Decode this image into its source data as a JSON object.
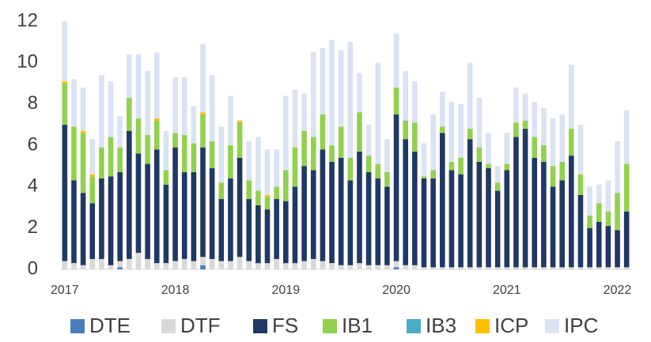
{
  "chart_data": {
    "type": "stacked_bar",
    "categories": [
      "2017",
      null,
      null,
      null,
      null,
      null,
      null,
      null,
      null,
      null,
      null,
      null,
      "2018",
      null,
      null,
      null,
      null,
      null,
      null,
      null,
      null,
      null,
      null,
      null,
      "2019",
      null,
      null,
      null,
      null,
      null,
      null,
      null,
      null,
      null,
      null,
      null,
      "2020",
      null,
      null,
      null,
      null,
      null,
      null,
      null,
      null,
      null,
      null,
      null,
      "2021",
      null,
      null,
      null,
      null,
      null,
      null,
      null,
      null,
      null,
      null,
      null,
      "2022",
      null
    ],
    "ylim": [
      0,
      12
    ],
    "yticks": [
      0,
      2,
      4,
      6,
      8,
      10,
      12
    ],
    "grid": false,
    "legend": "bottom",
    "series": [
      {
        "name": "DTE",
        "color": "#4a7ebb",
        "values": [
          0,
          0,
          0,
          0,
          0,
          0,
          0.1,
          0,
          0,
          0,
          0,
          0,
          0,
          0,
          0,
          0.2,
          0,
          0,
          0,
          0,
          0,
          0,
          0,
          0,
          0,
          0,
          0,
          0,
          0,
          0,
          0,
          0,
          0,
          0,
          0,
          0,
          0.1,
          0,
          0,
          0,
          0,
          0,
          0,
          0,
          0,
          0,
          0,
          0,
          0,
          0,
          0,
          0,
          0,
          0,
          0,
          0,
          0,
          0,
          0,
          0,
          0,
          0
        ]
      },
      {
        "name": "DTF",
        "color": "#d9d9d9",
        "values": [
          0.4,
          0.3,
          0.2,
          0.5,
          0.5,
          0.2,
          0.3,
          0.5,
          0.8,
          0.5,
          0.3,
          0.3,
          0.4,
          0.5,
          0.4,
          0.4,
          0.5,
          0.4,
          0.4,
          0.6,
          0.4,
          0.3,
          0.3,
          0.5,
          0.3,
          0.3,
          0.4,
          0.5,
          0.4,
          0.3,
          0.2,
          0.2,
          0.3,
          0.2,
          0.2,
          0.2,
          0.3,
          0.2,
          0.2,
          0.1,
          0.1,
          0.1,
          0.1,
          0.1,
          0.1,
          0.1,
          0.1,
          0.1,
          0.1,
          0.1,
          0.1,
          0.1,
          0.1,
          0.1,
          0.1,
          0.1,
          0.1,
          0.1,
          0.1,
          0.1,
          0.1,
          0.1
        ]
      },
      {
        "name": "FS",
        "color": "#203864",
        "values": [
          6.6,
          4.0,
          3.5,
          2.7,
          3.9,
          4.3,
          4.3,
          6.2,
          4.8,
          4.6,
          5.5,
          3.8,
          5.5,
          4.2,
          4.3,
          5.3,
          4.4,
          3.0,
          4.0,
          4.8,
          3.0,
          2.8,
          2.6,
          2.9,
          3.0,
          3.7,
          4.6,
          4.3,
          5.4,
          4.9,
          5.2,
          4.1,
          5.4,
          4.5,
          4.2,
          3.8,
          7.1,
          6.1,
          5.5,
          4.3,
          4.3,
          6.5,
          4.7,
          4.5,
          6.2,
          5.1,
          4.8,
          3.7,
          4.7,
          6.3,
          6.7,
          5.3,
          5.1,
          3.9,
          4.2,
          5.4,
          3.5,
          1.9,
          2.2,
          2.0,
          1.8,
          2.7
        ]
      },
      {
        "name": "IB1",
        "color": "#92d050",
        "values": [
          2.0,
          2.6,
          2.9,
          1.3,
          1.5,
          1.9,
          1.2,
          1.6,
          1.7,
          1.4,
          1.4,
          0.7,
          0.7,
          1.8,
          1.4,
          1.6,
          1.3,
          0.8,
          1.6,
          1.7,
          0.9,
          0.7,
          0.6,
          0.6,
          1.5,
          1.9,
          1.7,
          1.6,
          1.7,
          0.8,
          1.5,
          1.1,
          1.9,
          0.8,
          0.7,
          0.7,
          1.3,
          0.9,
          1.4,
          0.1,
          0.4,
          0.3,
          0.4,
          0.8,
          0.5,
          0.7,
          0.2,
          0.4,
          0.3,
          0.7,
          0.4,
          1.0,
          0.8,
          1.0,
          0.9,
          1.3,
          1.0,
          0.6,
          0.9,
          0.7,
          1.8,
          2.3
        ]
      },
      {
        "name": "IB3",
        "color": "#4bacc6",
        "values": [
          0,
          0,
          0,
          0,
          0,
          0,
          0,
          0,
          0,
          0,
          0,
          0,
          0,
          0,
          0,
          0,
          0,
          0,
          0,
          0,
          0,
          0,
          0,
          0,
          0,
          0,
          0,
          0,
          0,
          0,
          0,
          0,
          0,
          0,
          0,
          0,
          0,
          0,
          0,
          0,
          0,
          0,
          0,
          0,
          0,
          0,
          0,
          0,
          0,
          0,
          0,
          0,
          0,
          0,
          0,
          0,
          0,
          0,
          0,
          0,
          0,
          0
        ]
      },
      {
        "name": "ICP",
        "color": "#ffc000",
        "values": [
          0.1,
          0,
          0.1,
          0.1,
          0,
          0,
          0,
          0,
          0,
          0,
          0.1,
          0,
          0,
          0,
          0,
          0.1,
          0,
          0,
          0,
          0.1,
          0,
          0,
          0.1,
          0,
          0,
          0,
          0,
          0,
          0,
          0,
          0,
          0,
          0,
          0,
          0,
          0,
          0,
          0,
          0,
          0,
          0,
          0,
          0,
          0,
          0,
          0,
          0,
          0,
          0,
          0,
          0,
          0,
          0,
          0,
          0,
          0,
          0,
          0,
          0,
          0,
          0,
          0
        ]
      },
      {
        "name": "IPC",
        "color": "#dae3f3",
        "values": [
          2.9,
          2.3,
          2.1,
          1.7,
          3.5,
          2.7,
          1.5,
          2.1,
          3.1,
          3.1,
          3.2,
          1.9,
          2.7,
          2.8,
          1.8,
          3.3,
          3.2,
          2.7,
          2.4,
          0,
          1.9,
          2.6,
          2.2,
          1.8,
          3.6,
          2.8,
          1.8,
          4.1,
          3.2,
          5.1,
          3.7,
          5.6,
          1.9,
          1.5,
          4.9,
          1.6,
          2.6,
          2.4,
          2.0,
          1.6,
          2.7,
          1.7,
          2.9,
          2.6,
          3.2,
          2.4,
          1.5,
          0.8,
          1.5,
          1.7,
          1.3,
          1.7,
          1.8,
          2.3,
          2.3,
          3.1,
          2.4,
          1.4,
          0.9,
          1.5,
          2.5,
          2.6
        ]
      }
    ]
  }
}
